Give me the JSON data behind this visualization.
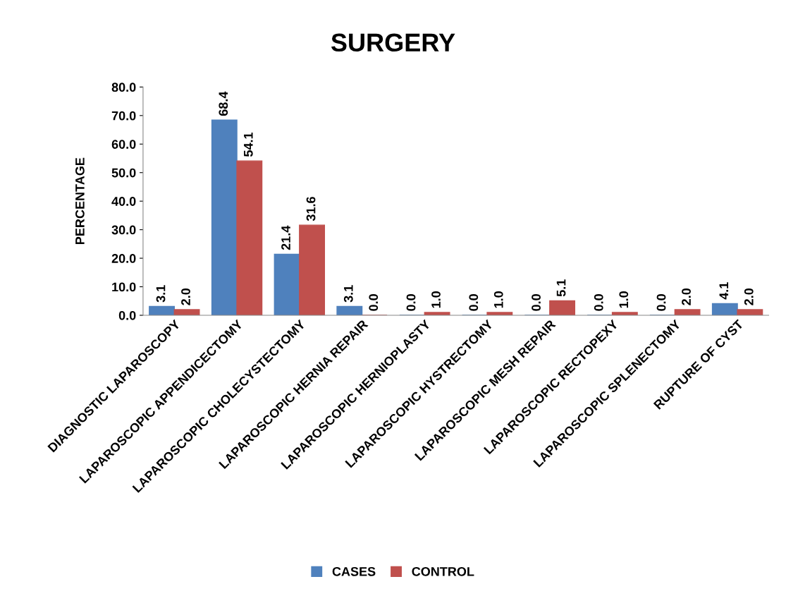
{
  "chart_data": {
    "type": "bar",
    "title": "SURGERY",
    "ylabel": "PERCENTAGE",
    "categories": [
      "DIAGNOSTIC LAPAROSCOPY",
      "LAPAROSCOPIC APPENDICECTOMY",
      "LAPAROSCOPIC CHOLECYSTECTOMY",
      "LAPAROSCOPIC HERNIA REPAIR",
      "LAPAROSCOPIC HERNIOPLASTY",
      "LAPAROSCOPIC HYSTRECTOMY",
      "LAPAROSCOPIC MESH REPAIR",
      "LAPAROSCOPIC RECTOPEXY",
      "LAPAROSCOPIC SPLENECTOMY",
      "RUPTURE OF CYST"
    ],
    "series": [
      {
        "name": "CASES",
        "color": "#4f81bd",
        "values": [
          3.1,
          68.4,
          21.4,
          3.1,
          0.0,
          0.0,
          0.0,
          0.0,
          0.0,
          4.1
        ],
        "value_labels": [
          "3.1",
          "68.4",
          "21.4",
          "3.1",
          "0.0",
          "0.0",
          "0.0",
          "0.0",
          "0.0",
          "4.1"
        ]
      },
      {
        "name": "CONTROL",
        "color": "#c0504d",
        "values": [
          2.0,
          54.1,
          31.6,
          0.0,
          1.0,
          1.0,
          5.1,
          1.0,
          2.0,
          2.0
        ],
        "value_labels": [
          "2.0",
          "54.1",
          "31.6",
          "0.0",
          "1.0",
          "1.0",
          "5.1",
          "1.0",
          "2.0",
          "2.0"
        ]
      }
    ],
    "ylim": [
      0,
      80
    ],
    "yticks": [
      {
        "value": 0,
        "label": "0.0"
      },
      {
        "value": 10,
        "label": "10.0"
      },
      {
        "value": 20,
        "label": "20.0"
      },
      {
        "value": 30,
        "label": "30.0"
      },
      {
        "value": 40,
        "label": "40.0"
      },
      {
        "value": 50,
        "label": "50.0"
      },
      {
        "value": 60,
        "label": "60.0"
      },
      {
        "value": 70,
        "label": "70.0"
      },
      {
        "value": 80,
        "label": "80.0"
      }
    ],
    "grid": false,
    "legend": "bottom"
  }
}
